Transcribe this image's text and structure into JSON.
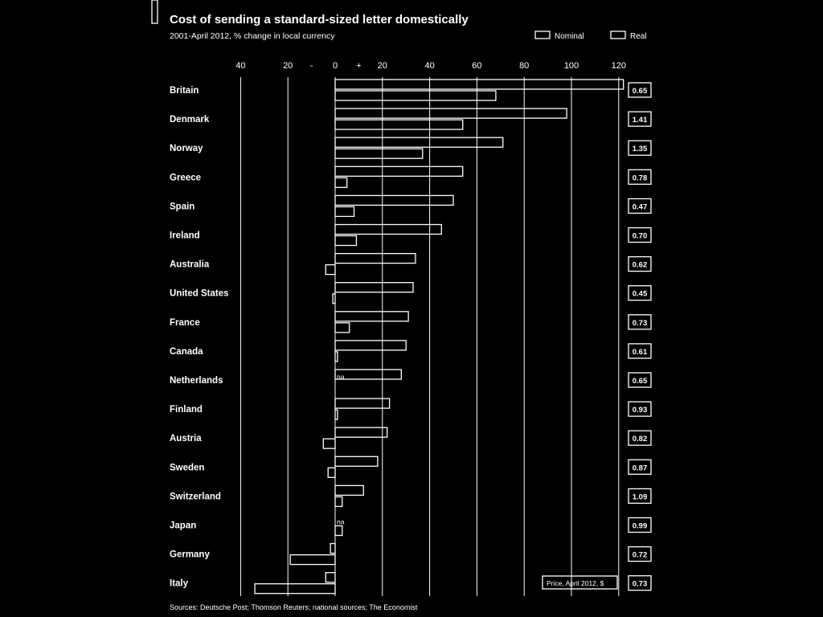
{
  "chart_data": {
    "type": "bar",
    "orientation": "horizontal",
    "title": "Cost of sending a standard-sized letter domestically",
    "subtitle": "2001-April 2012, % change in local currency",
    "xlim": [
      -40,
      120
    ],
    "x_ticks": [
      "40",
      "20",
      "-",
      "0",
      "+",
      "20",
      "40",
      "60",
      "80",
      "100",
      "120"
    ],
    "grid": true,
    "legend_position": "top-right",
    "series": [
      {
        "name": "Nominal",
        "values": [
          122,
          98,
          71,
          54,
          50,
          45,
          34,
          33,
          31,
          30,
          28,
          23,
          22,
          18,
          12,
          null,
          -2,
          -4
        ]
      },
      {
        "name": "Real",
        "values": [
          68,
          54,
          37,
          5,
          8,
          9,
          -4,
          -1,
          6,
          1,
          null,
          1,
          -5,
          -3,
          3,
          3,
          -19,
          -34
        ]
      }
    ],
    "categories": [
      "Britain",
      "Denmark",
      "Norway",
      "Greece",
      "Spain",
      "Ireland",
      "Australia",
      "United States",
      "France",
      "Canada",
      "Netherlands",
      "Finland",
      "Austria",
      "Sweden",
      "Switzerland",
      "Japan",
      "Germany",
      "Italy"
    ],
    "prices": [
      "0.65",
      "1.41",
      "1.35",
      "0.78",
      "0.47",
      "0.70",
      "0.62",
      "0.45",
      "0.73",
      "0.61",
      "0.65",
      "0.93",
      "0.82",
      "0.87",
      "1.09",
      "0.99",
      "0.72",
      "0.73"
    ],
    "bar_labels": [
      {
        "category": "Netherlands",
        "text": "na"
      },
      {
        "category": "Japan",
        "text": "na"
      }
    ],
    "price_note": "Price, April 2012, $",
    "source": "Sources: Deutsche Post; Thomson Reuters; national sources; The Economist"
  },
  "colors": {
    "background": "#000000",
    "foreground": "#ffffff"
  }
}
